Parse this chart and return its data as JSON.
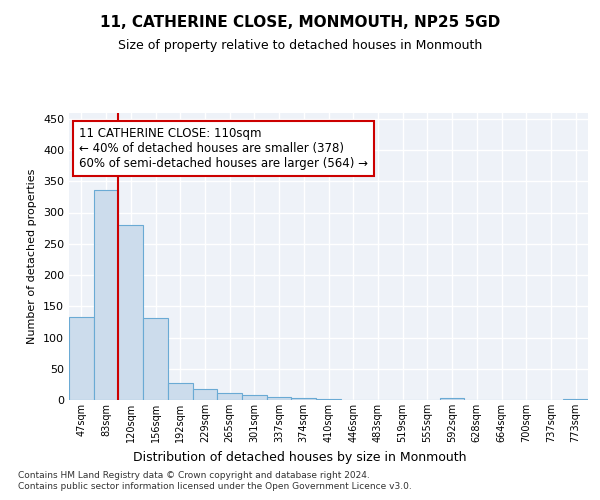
{
  "title": "11, CATHERINE CLOSE, MONMOUTH, NP25 5GD",
  "subtitle": "Size of property relative to detached houses in Monmouth",
  "xlabel": "Distribution of detached houses by size in Monmouth",
  "ylabel": "Number of detached properties",
  "bar_color": "#ccdcec",
  "bar_edge_color": "#6aaad4",
  "background_color": "#eef2f8",
  "grid_color": "#ffffff",
  "annotation_line_color": "#cc0000",
  "annotation_box_color": "#cc0000",
  "annotation_text": "11 CATHERINE CLOSE: 110sqm\n← 40% of detached houses are smaller (378)\n60% of semi-detached houses are larger (564) →",
  "footer": "Contains HM Land Registry data © Crown copyright and database right 2024.\nContains public sector information licensed under the Open Government Licence v3.0.",
  "categories": [
    "47sqm",
    "83sqm",
    "120sqm",
    "156sqm",
    "192sqm",
    "229sqm",
    "265sqm",
    "301sqm",
    "337sqm",
    "374sqm",
    "410sqm",
    "446sqm",
    "483sqm",
    "519sqm",
    "555sqm",
    "592sqm",
    "628sqm",
    "664sqm",
    "700sqm",
    "737sqm",
    "773sqm"
  ],
  "values": [
    133,
    336,
    280,
    131,
    27,
    17,
    11,
    8,
    5,
    3,
    1,
    0,
    0,
    0,
    0,
    3,
    0,
    0,
    0,
    0,
    2
  ],
  "ylim": [
    0,
    460
  ],
  "yticks": [
    0,
    50,
    100,
    150,
    200,
    250,
    300,
    350,
    400,
    450
  ],
  "vline_x": 1.5
}
